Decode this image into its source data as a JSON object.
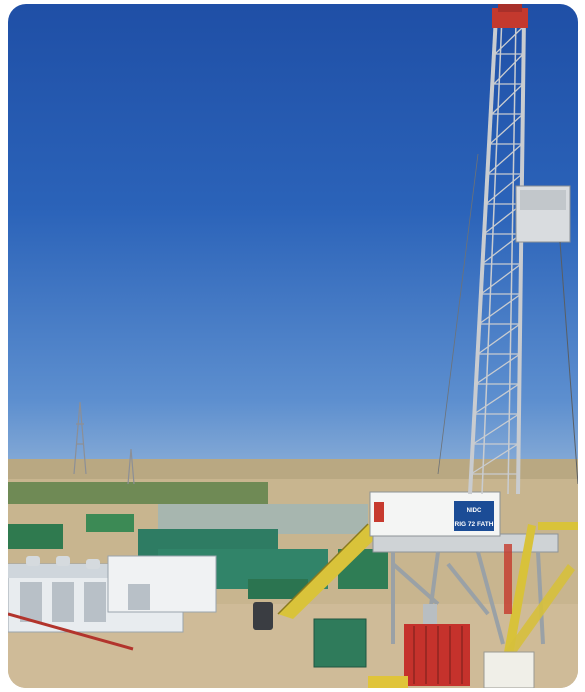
{
  "photo": {
    "subject": "Onshore drilling rig on desert site",
    "sky_color": "#2b63b9",
    "ground_color": "#c9b08a"
  },
  "rig_sign": {
    "logo": "NIDC",
    "name": "RIG 72 FATH"
  }
}
